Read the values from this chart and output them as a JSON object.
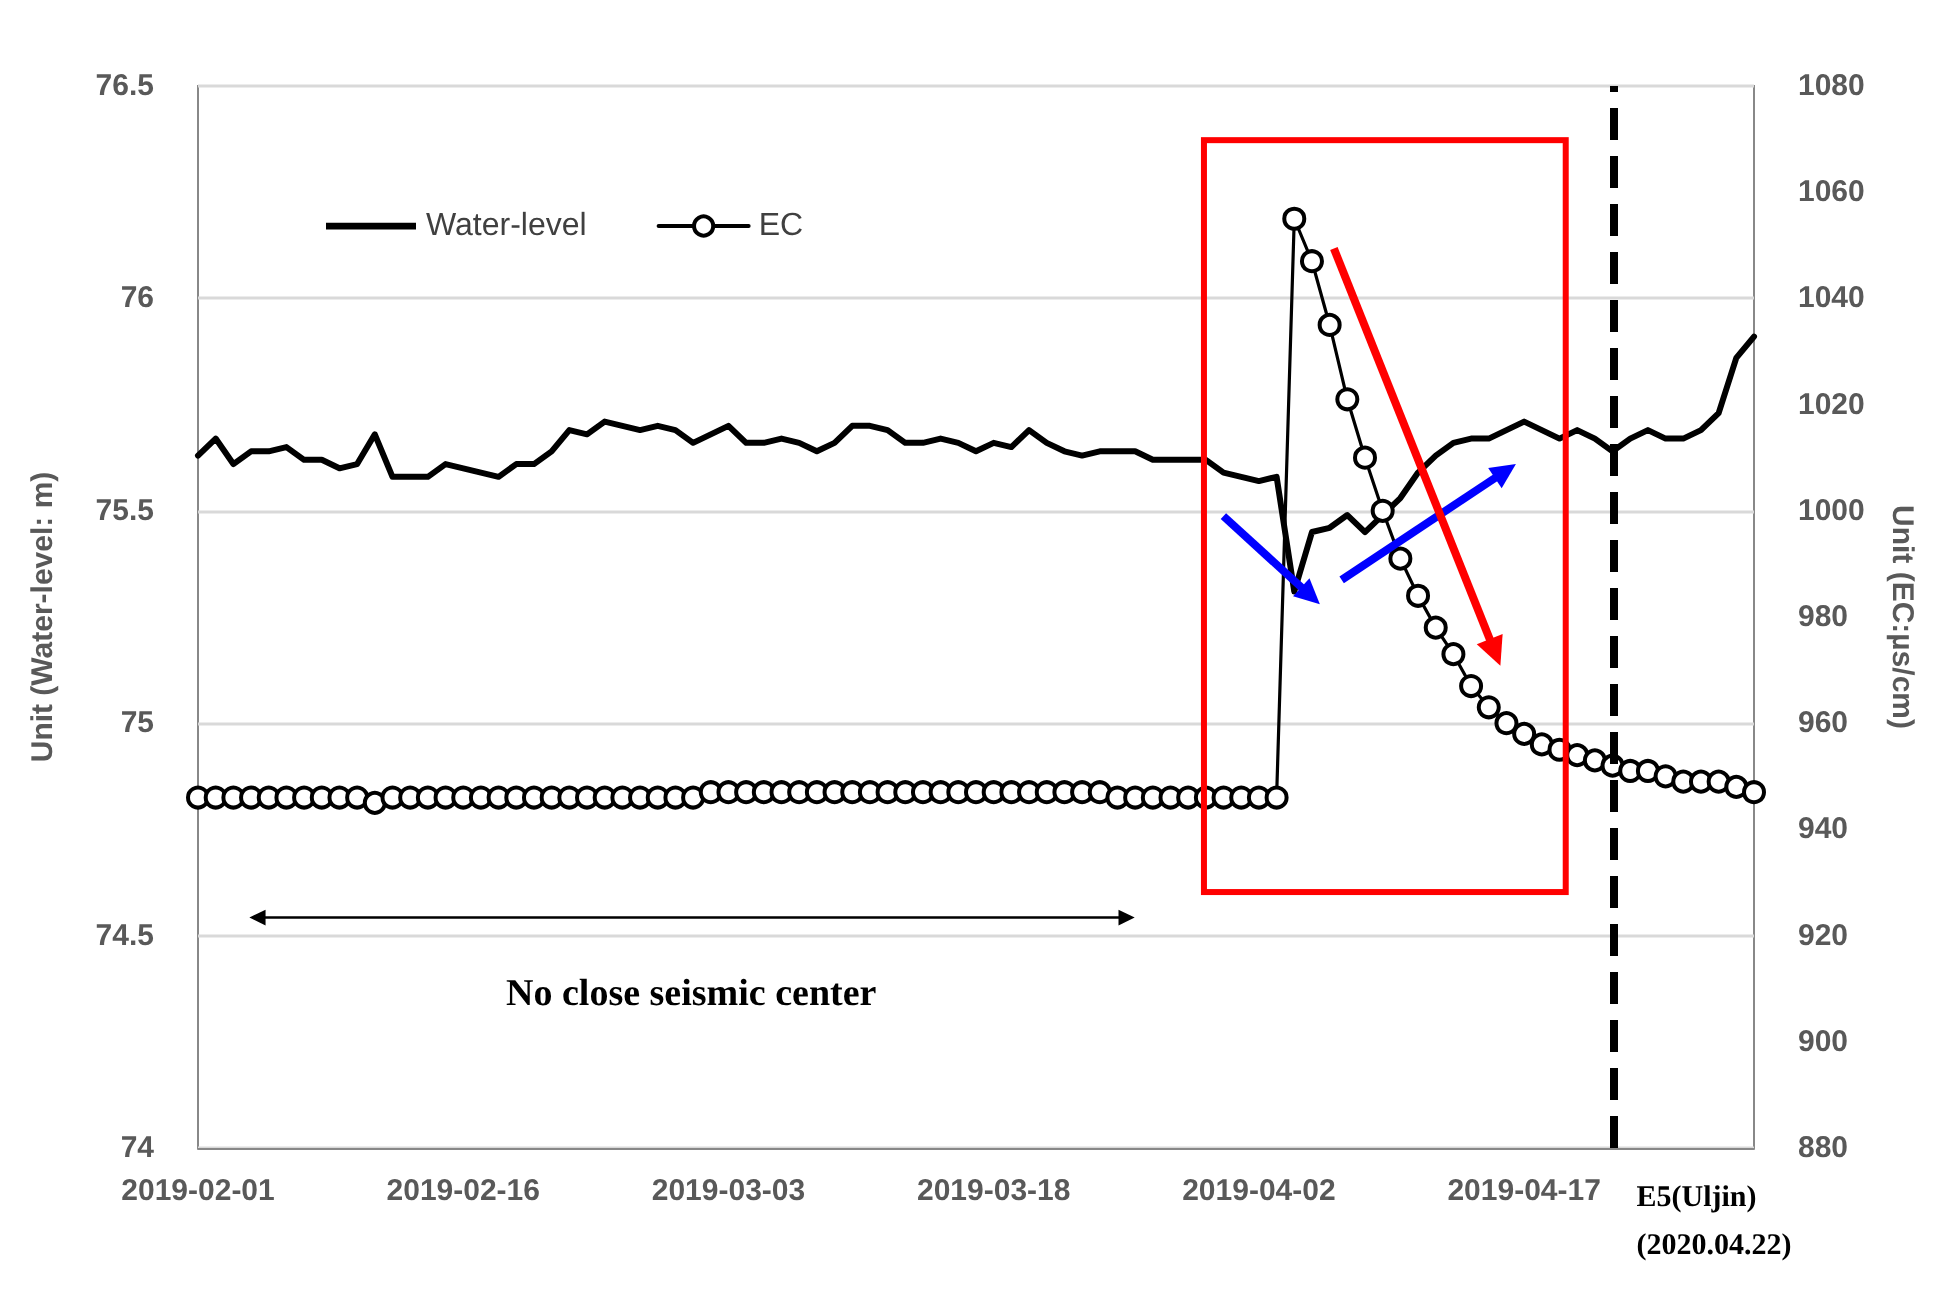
{
  "chart_data": {
    "type": "line",
    "ylabel": "Unit (Water-level: m)",
    "y2label": "Unit (EC:µs/cm)",
    "x": [
      "2019-02-01",
      "2019-02-02",
      "2019-02-03",
      "2019-02-04",
      "2019-02-05",
      "2019-02-06",
      "2019-02-07",
      "2019-02-08",
      "2019-02-09",
      "2019-02-10",
      "2019-02-11",
      "2019-02-12",
      "2019-02-13",
      "2019-02-14",
      "2019-02-15",
      "2019-02-16",
      "2019-02-17",
      "2019-02-18",
      "2019-02-19",
      "2019-02-20",
      "2019-02-21",
      "2019-02-22",
      "2019-02-23",
      "2019-02-24",
      "2019-02-25",
      "2019-02-26",
      "2019-02-27",
      "2019-02-28",
      "2019-03-01",
      "2019-03-02",
      "2019-03-03",
      "2019-03-04",
      "2019-03-05",
      "2019-03-06",
      "2019-03-07",
      "2019-03-08",
      "2019-03-09",
      "2019-03-10",
      "2019-03-11",
      "2019-03-12",
      "2019-03-13",
      "2019-03-14",
      "2019-03-15",
      "2019-03-16",
      "2019-03-17",
      "2019-03-18",
      "2019-03-19",
      "2019-03-20",
      "2019-03-21",
      "2019-03-22",
      "2019-03-23",
      "2019-03-24",
      "2019-03-25",
      "2019-03-26",
      "2019-03-27",
      "2019-03-28",
      "2019-03-29",
      "2019-03-30",
      "2019-03-31",
      "2019-04-01",
      "2019-04-02",
      "2019-04-03",
      "2019-04-04",
      "2019-04-05",
      "2019-04-06",
      "2019-04-07",
      "2019-04-08",
      "2019-04-09",
      "2019-04-10",
      "2019-04-11",
      "2019-04-12",
      "2019-04-13",
      "2019-04-14",
      "2019-04-15",
      "2019-04-16",
      "2019-04-17",
      "2019-04-18",
      "2019-04-19",
      "2019-04-20",
      "2019-04-21",
      "2019-04-22",
      "2019-04-23",
      "2019-04-24",
      "2019-04-25",
      "2019-04-26",
      "2019-04-27",
      "2019-04-28",
      "2019-04-29",
      "2019-04-30"
    ],
    "series": [
      {
        "name": "Water-level",
        "color": "#000000",
        "marker": "none",
        "values": [
          75.63,
          75.67,
          75.61,
          75.64,
          75.64,
          75.65,
          75.62,
          75.62,
          75.6,
          75.61,
          75.68,
          75.58,
          75.58,
          75.58,
          75.61,
          75.6,
          75.59,
          75.58,
          75.61,
          75.61,
          75.64,
          75.69,
          75.68,
          75.71,
          75.7,
          75.69,
          75.7,
          75.69,
          75.66,
          75.68,
          75.7,
          75.66,
          75.66,
          75.67,
          75.66,
          75.64,
          75.66,
          75.7,
          75.7,
          75.69,
          75.66,
          75.66,
          75.67,
          75.66,
          75.64,
          75.66,
          75.65,
          75.69,
          75.66,
          75.64,
          75.63,
          75.64,
          75.64,
          75.64,
          75.62,
          75.62,
          75.62,
          75.62,
          75.59,
          75.58,
          75.57,
          75.58,
          75.31,
          75.45,
          75.46,
          75.49,
          75.45,
          75.49,
          75.53,
          75.59,
          75.63,
          75.66,
          75.67,
          75.67,
          75.69,
          75.71,
          75.69,
          75.67,
          75.69,
          75.67,
          75.64,
          75.67,
          75.69,
          75.67,
          75.67,
          75.69,
          75.73,
          75.86,
          75.91
        ]
      },
      {
        "name": "EC",
        "color": "#000000",
        "marker": "circle",
        "axis": "y2",
        "values": [
          946,
          946,
          946,
          946,
          946,
          946,
          946,
          946,
          946,
          946,
          945,
          946,
          946,
          946,
          946,
          946,
          946,
          946,
          946,
          946,
          946,
          946,
          946,
          946,
          946,
          946,
          946,
          946,
          946,
          947,
          947,
          947,
          947,
          947,
          947,
          947,
          947,
          947,
          947,
          947,
          947,
          947,
          947,
          947,
          947,
          947,
          947,
          947,
          947,
          947,
          947,
          947,
          946,
          946,
          946,
          946,
          946,
          946,
          946,
          946,
          946,
          946,
          1055,
          1047,
          1035,
          1021,
          1010,
          1000,
          991,
          984,
          978,
          973,
          967,
          963,
          960,
          958,
          956,
          955,
          954,
          953,
          952,
          951,
          951,
          950,
          949,
          949,
          949,
          948,
          947
        ]
      }
    ],
    "xlim": [
      "2019-02-01",
      "2019-04-30"
    ],
    "xticks": [
      "2019-02-01",
      "2019-02-16",
      "2019-03-03",
      "2019-03-18",
      "2019-04-02",
      "2019-04-17"
    ],
    "ylim": [
      74,
      76.5
    ],
    "yticks": [
      74,
      74.5,
      75,
      75.5,
      76,
      76.5
    ],
    "y2lim": [
      880,
      1080
    ],
    "y2ticks": [
      880,
      900,
      920,
      940,
      960,
      980,
      1000,
      1020,
      1040,
      1060,
      1080
    ],
    "ref_lines": [
      {
        "axis": "x",
        "value": "2019-04-22",
        "label": "E5(Uljin)\n(2020.04.22)",
        "color": "#000000",
        "line_style": "dashed"
      }
    ],
    "annotations": [
      "No close seismic center"
    ],
    "grid": "y",
    "legend": "top left",
    "line_style": "solid"
  }
}
